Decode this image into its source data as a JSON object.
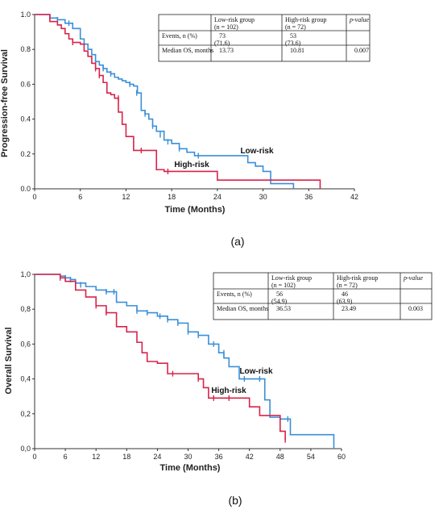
{
  "chart_data": [
    {
      "type": "line",
      "panel_label": "(a)",
      "ylabel": "Progression-free Survival",
      "xlabel": "Time (Months)",
      "xlim": [
        0,
        42
      ],
      "ylim": [
        0,
        1.0
      ],
      "x_ticks": [
        "0",
        "6",
        "12",
        "18",
        "24",
        "30",
        "36",
        "42"
      ],
      "y_ticks": [
        "0.0",
        "0.2",
        "0.4",
        "0.6",
        "0.8",
        "1.0"
      ],
      "series": [
        {
          "name": "Low-risk",
          "color": "#3a8fd8",
          "x": [
            0,
            1,
            2,
            3,
            4,
            5,
            6,
            6.5,
            7,
            7.5,
            8,
            8.5,
            9,
            9.5,
            10,
            10.5,
            11,
            11.5,
            12,
            12.5,
            13,
            13.5,
            14,
            14.5,
            15,
            15.5,
            16,
            17,
            18,
            19,
            20,
            21,
            22,
            24,
            26,
            28,
            29,
            30,
            31,
            34
          ],
          "y": [
            1.0,
            1.0,
            0.98,
            0.97,
            0.95,
            0.92,
            0.86,
            0.83,
            0.8,
            0.77,
            0.73,
            0.71,
            0.69,
            0.67,
            0.66,
            0.64,
            0.63,
            0.62,
            0.61,
            0.6,
            0.59,
            0.55,
            0.45,
            0.43,
            0.4,
            0.36,
            0.33,
            0.28,
            0.26,
            0.23,
            0.21,
            0.19,
            0.19,
            0.19,
            0.19,
            0.15,
            0.13,
            0.1,
            0.03,
            0.0
          ],
          "censor_x": [
            2,
            3,
            4.5,
            8,
            9,
            10,
            12.5,
            13.4,
            14.5,
            15.5,
            16.5,
            17.5,
            19,
            21.5
          ],
          "censor_y": [
            0.98,
            0.97,
            0.95,
            0.73,
            0.69,
            0.66,
            0.6,
            0.55,
            0.43,
            0.36,
            0.31,
            0.27,
            0.23,
            0.19
          ]
        },
        {
          "name": "High-risk",
          "color": "#d8234a",
          "x": [
            0,
            1,
            2,
            3,
            3.5,
            4,
            4.5,
            5,
            6,
            6.5,
            7,
            7.5,
            8,
            8.5,
            9,
            9.5,
            10,
            10.5,
            11,
            11.5,
            12,
            13,
            15,
            16,
            17,
            18,
            19,
            20,
            24,
            30,
            36,
            37.5
          ],
          "y": [
            1.0,
            1.0,
            0.96,
            0.94,
            0.92,
            0.89,
            0.86,
            0.84,
            0.83,
            0.79,
            0.76,
            0.72,
            0.69,
            0.65,
            0.61,
            0.55,
            0.54,
            0.52,
            0.44,
            0.37,
            0.3,
            0.22,
            0.22,
            0.11,
            0.1,
            0.1,
            0.1,
            0.1,
            0.05,
            0.05,
            0.05,
            0.0
          ],
          "censor_x": [
            5,
            8,
            8.5,
            11,
            14,
            17.5
          ],
          "censor_y": [
            0.84,
            0.69,
            0.65,
            0.52,
            0.22,
            0.1
          ]
        }
      ],
      "annotations": [
        "Low-risk",
        "High-risk"
      ],
      "table": {
        "headers": [
          "",
          "Low-risk group (n = 102)",
          "High-risk group (n = 72)",
          "p-value"
        ],
        "rows": [
          [
            "Events, n (%)",
            "73 (71.6)",
            "53 (73.6)",
            ""
          ],
          [
            "Median OS, months",
            "13.73",
            "10.81",
            "0.007"
          ]
        ]
      }
    },
    {
      "type": "line",
      "panel_label": "(b)",
      "ylabel": "Overall Survival",
      "xlabel": "Time (Months)",
      "xlim": [
        0,
        60
      ],
      "ylim": [
        0,
        1.0
      ],
      "x_ticks": [
        "0",
        "6",
        "12",
        "18",
        "24",
        "30",
        "36",
        "42",
        "48",
        "54",
        "60"
      ],
      "y_ticks": [
        "0,0",
        "0,2",
        "0,4",
        "0,6",
        "0,8",
        "1,0"
      ],
      "series": [
        {
          "name": "Low-risk",
          "color": "#3a8fd8",
          "x": [
            0,
            3,
            5,
            6,
            7,
            8,
            10,
            12,
            14,
            16,
            18,
            20,
            22,
            24,
            26,
            28,
            30,
            32,
            34,
            36,
            37,
            38,
            40,
            42,
            44,
            45,
            46,
            48,
            50,
            58,
            58.5
          ],
          "y": [
            1.0,
            1.0,
            0.99,
            0.98,
            0.97,
            0.95,
            0.93,
            0.91,
            0.9,
            0.84,
            0.82,
            0.79,
            0.78,
            0.76,
            0.74,
            0.72,
            0.67,
            0.65,
            0.6,
            0.55,
            0.52,
            0.47,
            0.4,
            0.4,
            0.4,
            0.28,
            0.18,
            0.17,
            0.08,
            0.08,
            0.0
          ],
          "censor_x": [
            6,
            7,
            9,
            14,
            15.5,
            20,
            22,
            24.5,
            26,
            28,
            30,
            32,
            35,
            37,
            41,
            44,
            48,
            49.5
          ],
          "censor_y": [
            0.98,
            0.97,
            0.94,
            0.9,
            0.9,
            0.79,
            0.78,
            0.76,
            0.74,
            0.72,
            0.67,
            0.65,
            0.6,
            0.55,
            0.4,
            0.4,
            0.17,
            0.17
          ]
        },
        {
          "name": "High-risk",
          "color": "#d8234a",
          "x": [
            0,
            4,
            5,
            6,
            8,
            10,
            12,
            14,
            16,
            18,
            20,
            21,
            22,
            24,
            26,
            28,
            30,
            32,
            33,
            34,
            36,
            40,
            42,
            44,
            46,
            48,
            49
          ],
          "y": [
            1.0,
            1.0,
            0.98,
            0.96,
            0.91,
            0.87,
            0.82,
            0.78,
            0.7,
            0.67,
            0.61,
            0.55,
            0.5,
            0.49,
            0.43,
            0.43,
            0.43,
            0.4,
            0.35,
            0.29,
            0.29,
            0.29,
            0.24,
            0.19,
            0.19,
            0.1,
            0.05
          ],
          "censor_x": [
            5,
            12,
            14,
            27,
            32,
            35,
            38,
            49
          ],
          "censor_y": [
            0.98,
            0.82,
            0.78,
            0.43,
            0.4,
            0.29,
            0.29,
            0.05
          ]
        }
      ],
      "annotations": [
        "Low-risk",
        "High-risk"
      ],
      "table": {
        "headers": [
          "",
          "Low-risk group (n = 102)",
          "High-risk group (n = 72)",
          "p-value"
        ],
        "rows": [
          [
            "Events, n (%)",
            "56 (54.9)",
            "46 (63.9)",
            ""
          ],
          [
            "Median OS, months",
            "36.53",
            "23.49",
            "0.003"
          ]
        ]
      }
    }
  ]
}
